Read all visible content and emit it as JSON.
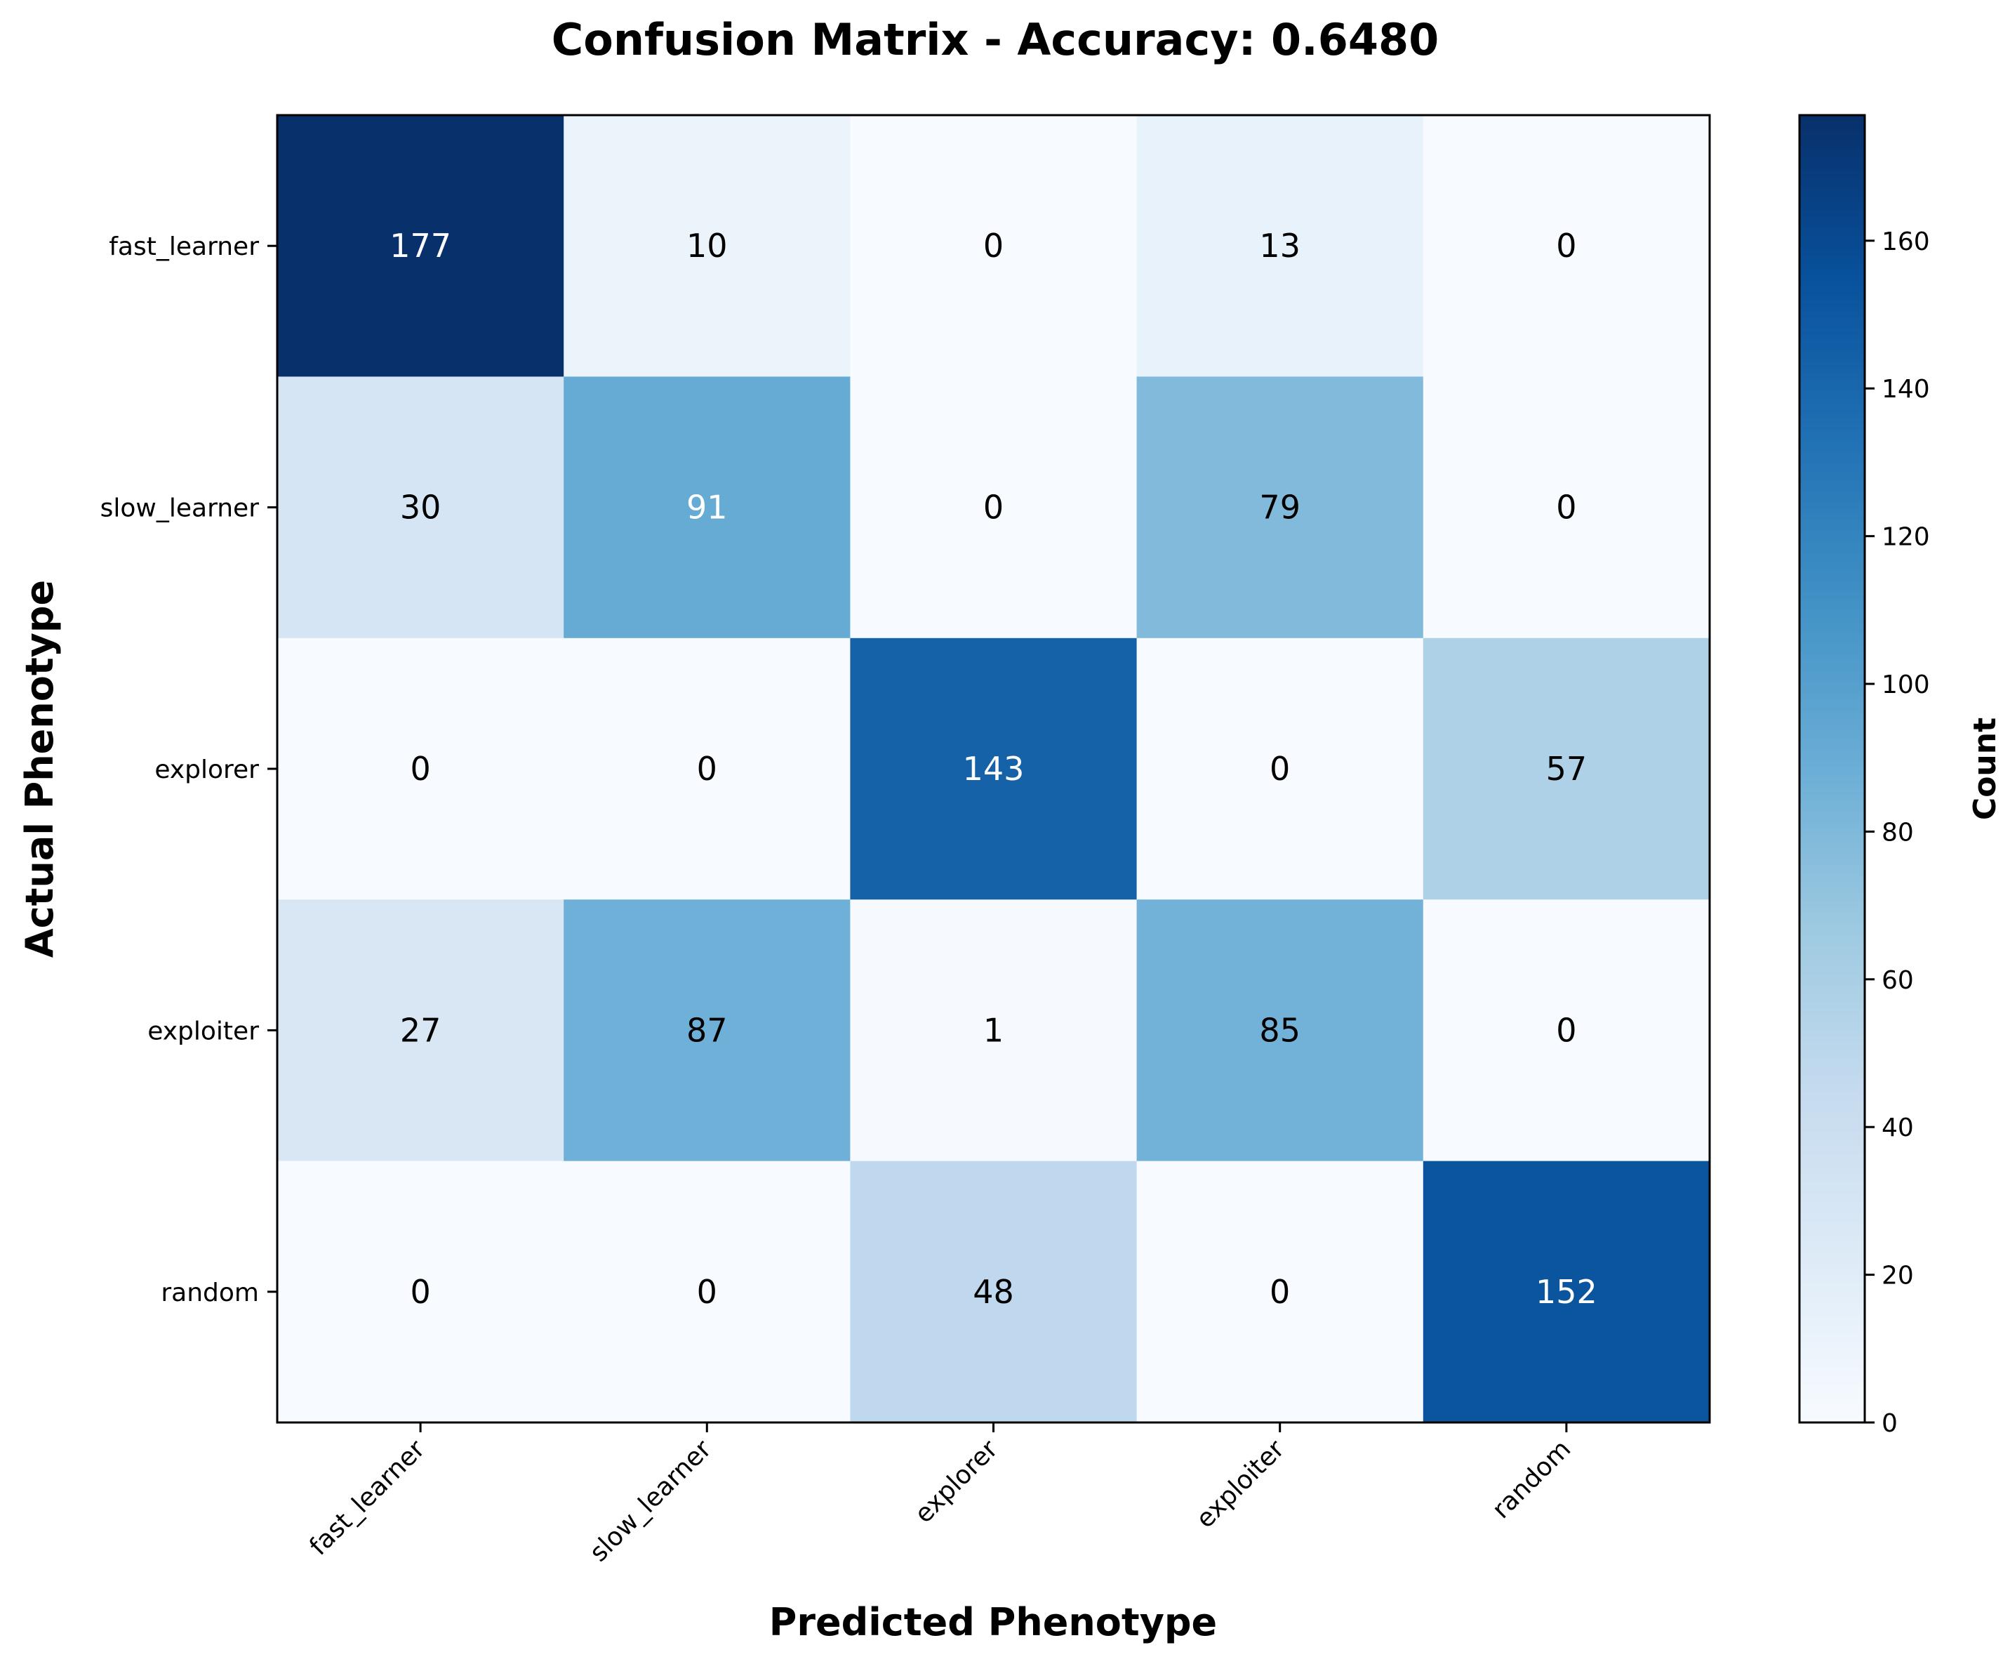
{
  "chart_data": {
    "type": "heatmap",
    "title": "Confusion Matrix - Accuracy: 0.6480",
    "xlabel": "Predicted Phenotype",
    "ylabel": "Actual Phenotype",
    "x_categories": [
      "fast_learner",
      "slow_learner",
      "explorer",
      "exploiter",
      "random"
    ],
    "y_categories": [
      "fast_learner",
      "slow_learner",
      "explorer",
      "exploiter",
      "random"
    ],
    "values": [
      [
        177,
        10,
        0,
        13,
        0
      ],
      [
        30,
        91,
        0,
        79,
        0
      ],
      [
        0,
        0,
        143,
        0,
        57
      ],
      [
        27,
        87,
        1,
        85,
        0
      ],
      [
        0,
        0,
        48,
        0,
        152
      ]
    ],
    "colormap": "Blues",
    "vmin": 0,
    "vmax": 177,
    "colorbar": {
      "label": "Count",
      "ticks": [
        0,
        20,
        40,
        60,
        80,
        100,
        120,
        140,
        160
      ]
    }
  }
}
